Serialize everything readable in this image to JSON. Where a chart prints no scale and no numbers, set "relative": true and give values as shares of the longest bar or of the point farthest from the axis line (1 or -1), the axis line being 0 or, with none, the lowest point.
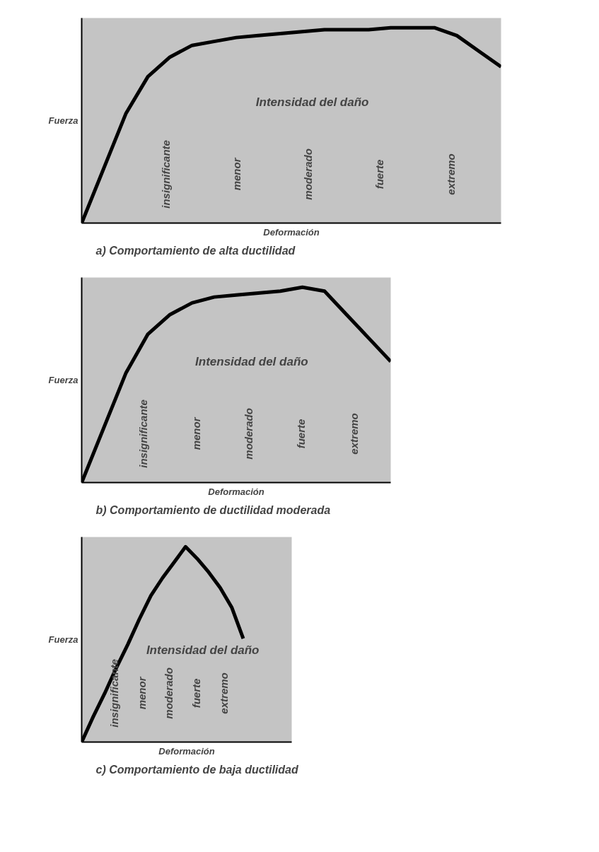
{
  "chart_data": [
    {
      "type": "line",
      "title": "a) Comportamiento de alta ductilidad",
      "xlabel": "Deformación",
      "ylabel": "Fuerza",
      "relative": true,
      "color": "#000000",
      "categories": [
        null,
        null,
        null,
        null,
        null,
        null,
        null,
        null,
        null,
        null,
        null,
        null,
        null,
        null,
        null,
        null,
        null,
        null,
        null,
        null
      ],
      "values": [
        0,
        0.28,
        0.56,
        0.75,
        0.85,
        0.91,
        0.93,
        0.95,
        0.96,
        0.97,
        0.98,
        0.99,
        0.99,
        0.99,
        1.0,
        1.0,
        1.0,
        0.96,
        0.88,
        0.8
      ],
      "annotations": [
        "Intensidad del daño",
        "insignificante",
        "menor",
        "moderado",
        "fuerte",
        "extremo"
      ]
    },
    {
      "type": "line",
      "title": "b) Comportamiento de ductilidad moderada",
      "xlabel": "Deformación",
      "ylabel": "Fuerza",
      "relative": true,
      "color": "#000000",
      "categories": [
        null,
        null,
        null,
        null,
        null,
        null,
        null,
        null,
        null,
        null,
        null,
        null,
        null,
        null,
        null
      ],
      "values": [
        0,
        0.28,
        0.56,
        0.76,
        0.86,
        0.92,
        0.95,
        0.96,
        0.97,
        0.98,
        1.0,
        0.98,
        0.86,
        0.74,
        0.62
      ],
      "annotations": [
        "Intensidad del daño",
        "insignificante",
        "menor",
        "moderado",
        "fuerte",
        "extremo"
      ]
    },
    {
      "type": "line",
      "title": "c) Comportamiento de baja ductilidad",
      "xlabel": "Deformación",
      "ylabel": "Fuerza",
      "relative": true,
      "color": "#000000",
      "categories": [
        null,
        null,
        null,
        null,
        null,
        null,
        null,
        null,
        null,
        null,
        null,
        null,
        null,
        null,
        null
      ],
      "values": [
        0,
        0.13,
        0.25,
        0.38,
        0.5,
        0.63,
        0.75,
        0.84,
        0.92,
        1.0,
        0.94,
        0.87,
        0.79,
        0.69,
        0.53
      ],
      "annotations": [
        "Intensidad del daño",
        "insignificante",
        "menor",
        "moderado",
        "fuerte",
        "extremo"
      ]
    }
  ]
}
